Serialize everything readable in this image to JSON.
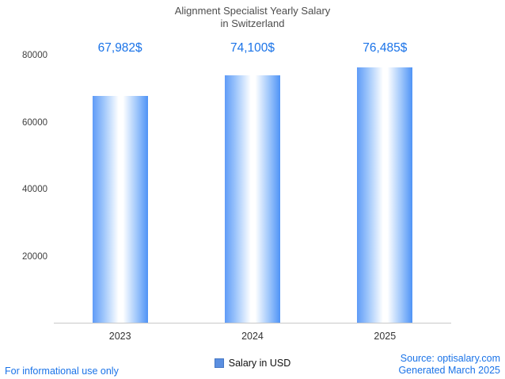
{
  "chart_data": {
    "type": "bar",
    "title": "Alignment Specialist Yearly Salary in Switzerland",
    "title_line1": "Alignment Specialist Yearly Salary",
    "title_line2": "in Switzerland",
    "categories": [
      "2023",
      "2024",
      "2025"
    ],
    "series": [
      {
        "name": "Salary in USD",
        "values": [
          67982,
          74100,
          76485
        ]
      }
    ],
    "value_labels": [
      "67,982$",
      "74,100$",
      "76,485$"
    ],
    "ylim": [
      0,
      80000
    ],
    "yticks": [
      20000,
      40000,
      60000,
      80000
    ],
    "ytick_labels": [
      "20000",
      "40000",
      "60000",
      "80000"
    ],
    "legend": {
      "label": "Salary in USD",
      "position": "bottom"
    },
    "grid": false,
    "xlabel": "",
    "ylabel": ""
  },
  "footer": {
    "left_note": "For informational use only",
    "source": "Source: optisalary.com",
    "generated": "Generated March 2025"
  },
  "colors": {
    "accent": "#1a73e8",
    "bar_edge": "#5f9bf7",
    "bar_center": "#ffffff",
    "legend_swatch": "#5b8fe0",
    "title_text": "#4d4d4d",
    "axis_line": "#c9c9c9"
  }
}
